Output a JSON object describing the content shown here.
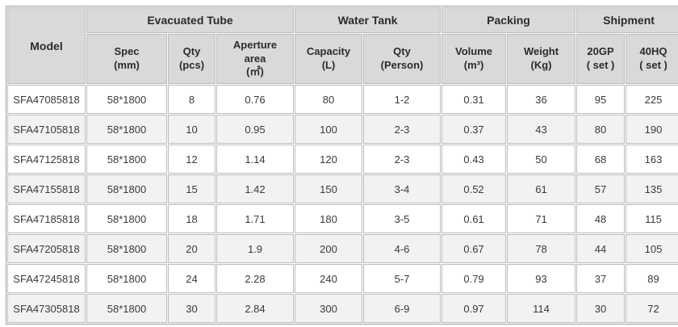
{
  "colors": {
    "header_bg": "#d9d9d9",
    "row_bg": "#ffffff",
    "row_alt_bg": "#f2f2f2",
    "border": "#bcbcbc",
    "outer_border": "#9f9f9f",
    "text": "#3a3a3a"
  },
  "table": {
    "header": {
      "model": "Model",
      "groups": [
        {
          "label": "Evacuated Tube",
          "span": 3
        },
        {
          "label": "Water Tank",
          "span": 2
        },
        {
          "label": "Packing",
          "span": 2
        },
        {
          "label": "Shipment",
          "span": 2
        }
      ],
      "columns": [
        "Spec\n(mm)",
        "Qty\n(pcs)",
        "Aperture\narea\n(㎡)",
        "Capacity\n(L)",
        "Qty\n(Person)",
        "Volume\n(m³)",
        "Weight\n(Kg)",
        "20GP\n( set )",
        "40HQ\n( set )"
      ]
    },
    "rows": [
      [
        "SFA47085818",
        "58*1800",
        "8",
        "0.76",
        "80",
        "1-2",
        "0.31",
        "36",
        "95",
        "225"
      ],
      [
        "SFA47105818",
        "58*1800",
        "10",
        "0.95",
        "100",
        "2-3",
        "0.37",
        "43",
        "80",
        "190"
      ],
      [
        "SFA47125818",
        "58*1800",
        "12",
        "1.14",
        "120",
        "2-3",
        "0.43",
        "50",
        "68",
        "163"
      ],
      [
        "SFA47155818",
        "58*1800",
        "15",
        "1.42",
        "150",
        "3-4",
        "0.52",
        "61",
        "57",
        "135"
      ],
      [
        "SFA47185818",
        "58*1800",
        "18",
        "1.71",
        "180",
        "3-5",
        "0.61",
        "71",
        "48",
        "115"
      ],
      [
        "SFA47205818",
        "58*1800",
        "20",
        "1.9",
        "200",
        "4-6",
        "0.67",
        "78",
        "44",
        "105"
      ],
      [
        "SFA47245818",
        "58*1800",
        "24",
        "2.28",
        "240",
        "5-7",
        "0.79",
        "93",
        "37",
        "89"
      ],
      [
        "SFA47305818",
        "58*1800",
        "30",
        "2.84",
        "300",
        "6-9",
        "0.97",
        "114",
        "30",
        "72"
      ]
    ]
  }
}
